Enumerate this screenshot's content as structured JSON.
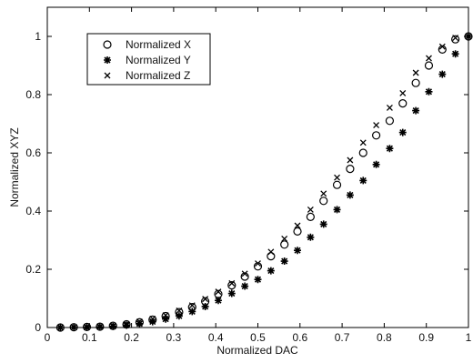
{
  "chart_data": {
    "type": "scatter",
    "title": "",
    "xlabel": "Normalized DAC",
    "ylabel": "Normalized XYZ",
    "xlim": [
      0,
      1
    ],
    "ylim": [
      0,
      1.1
    ],
    "xticks": [
      "0",
      "0.1",
      "0.2",
      "0.3",
      "0.4",
      "0.5",
      "0.6",
      "0.7",
      "0.8",
      "0.9",
      "1"
    ],
    "xtick_values": [
      0,
      0.1,
      0.2,
      0.3,
      0.4,
      0.5,
      0.6,
      0.7,
      0.8,
      0.9,
      1
    ],
    "yticks": [
      "0",
      "0.2",
      "0.4",
      "0.6",
      "0.8",
      "1"
    ],
    "ytick_values": [
      0,
      0.2,
      0.4,
      0.6,
      0.8,
      1
    ],
    "grid": false,
    "legend_position": "top-left",
    "x": [
      0.031,
      0.063,
      0.094,
      0.125,
      0.156,
      0.188,
      0.219,
      0.25,
      0.281,
      0.313,
      0.344,
      0.375,
      0.406,
      0.438,
      0.469,
      0.5,
      0.531,
      0.563,
      0.594,
      0.625,
      0.656,
      0.688,
      0.719,
      0.75,
      0.781,
      0.813,
      0.844,
      0.875,
      0.906,
      0.938,
      0.969,
      1.0
    ],
    "series": [
      {
        "name": "Normalized X",
        "marker": "circle",
        "values": [
          0.0,
          0.001,
          0.002,
          0.003,
          0.006,
          0.011,
          0.018,
          0.027,
          0.039,
          0.053,
          0.07,
          0.09,
          0.115,
          0.145,
          0.175,
          0.21,
          0.245,
          0.285,
          0.33,
          0.38,
          0.435,
          0.49,
          0.545,
          0.6,
          0.66,
          0.71,
          0.77,
          0.84,
          0.9,
          0.955,
          0.99,
          1.0
        ]
      },
      {
        "name": "Normalized Y",
        "marker": "star",
        "values": [
          0.0,
          0.001,
          0.001,
          0.002,
          0.004,
          0.008,
          0.013,
          0.02,
          0.029,
          0.04,
          0.055,
          0.072,
          0.093,
          0.117,
          0.142,
          0.165,
          0.195,
          0.228,
          0.265,
          0.31,
          0.355,
          0.405,
          0.455,
          0.505,
          0.56,
          0.615,
          0.67,
          0.745,
          0.81,
          0.87,
          0.94,
          1.0
        ]
      },
      {
        "name": "Normalized Z",
        "marker": "x",
        "values": [
          0.0,
          0.001,
          0.002,
          0.004,
          0.007,
          0.012,
          0.02,
          0.03,
          0.042,
          0.058,
          0.076,
          0.098,
          0.123,
          0.152,
          0.185,
          0.22,
          0.26,
          0.305,
          0.35,
          0.405,
          0.46,
          0.515,
          0.575,
          0.635,
          0.695,
          0.755,
          0.805,
          0.875,
          0.925,
          0.965,
          0.995,
          1.0
        ]
      }
    ]
  }
}
